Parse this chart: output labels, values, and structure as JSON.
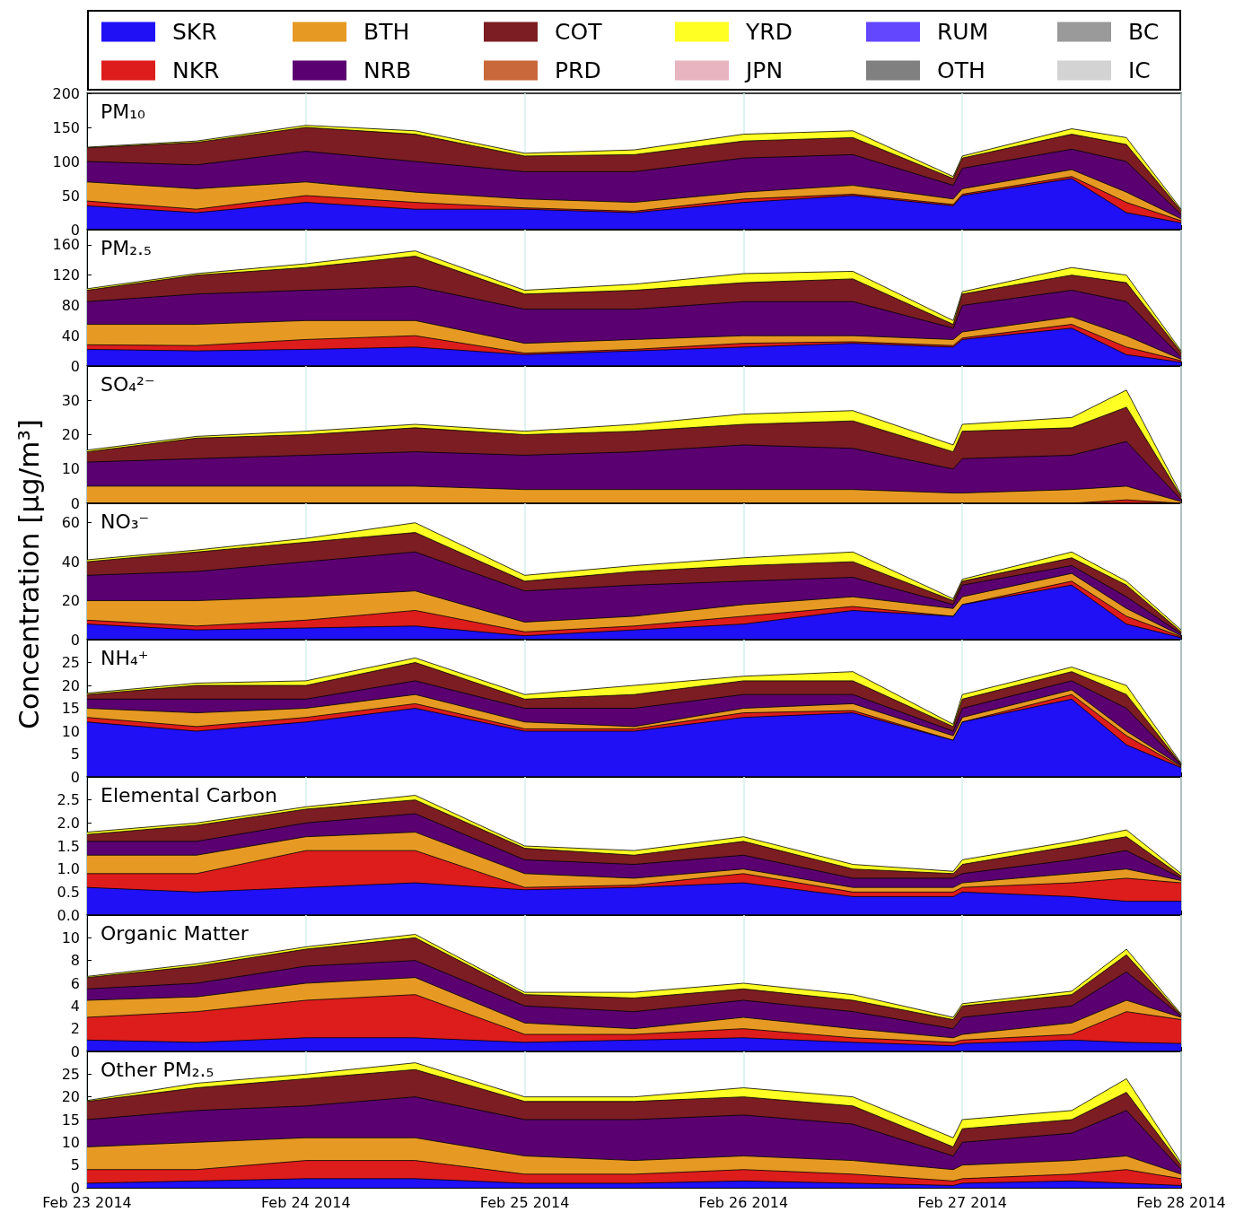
{
  "chart_data": [
    {
      "type": "area",
      "stacked": true,
      "title": "PM₁₀",
      "legend": "top",
      "marker": "none",
      "grid": "x",
      "tick_labels": "y",
      "x": [
        "2014-02-23T00:00",
        "2014-02-23T12:00",
        "2014-02-24T00:00",
        "2014-02-24T12:00",
        "2014-02-25T00:00",
        "2014-02-25T12:00",
        "2014-02-26T00:00",
        "2014-02-26T12:00",
        "2014-02-26T23:00",
        "2014-02-27T00:00",
        "2014-02-27T12:00",
        "2014-02-27T18:00",
        "2014-02-28T00:00"
      ],
      "xlim": [
        "2014-02-23",
        "2014-02-28"
      ],
      "xticks": [
        {
          "value": "2014-02-23",
          "label": null
        },
        {
          "value": "2014-02-24",
          "label": null
        },
        {
          "value": "2014-02-25",
          "label": null
        },
        {
          "value": "2014-02-26",
          "label": null
        },
        {
          "value": "2014-02-27",
          "label": null
        },
        {
          "value": "2014-02-28",
          "label": null
        }
      ],
      "ylim": [
        0,
        200
      ],
      "yticks": [
        0,
        50,
        100,
        150,
        200
      ],
      "series": [
        {
          "name": "SKR",
          "color": "#1f10f5",
          "values": [
            35,
            25,
            40,
            30,
            30,
            25,
            40,
            50,
            35,
            50,
            75,
            25,
            10
          ]
        },
        {
          "name": "NKR",
          "color": "#dd1c1c",
          "values": [
            7,
            5,
            10,
            10,
            2,
            2,
            5,
            2,
            2,
            2,
            3,
            15,
            3
          ]
        },
        {
          "name": "BTH",
          "color": "#e79a23",
          "values": [
            28,
            30,
            20,
            15,
            13,
            13,
            10,
            13,
            8,
            8,
            10,
            15,
            3
          ]
        },
        {
          "name": "NRB",
          "color": "#5a0070",
          "values": [
            30,
            35,
            45,
            45,
            40,
            45,
            50,
            45,
            20,
            30,
            30,
            45,
            6
          ]
        },
        {
          "name": "COT",
          "color": "#7b1d22",
          "values": [
            20,
            33,
            35,
            40,
            23,
            25,
            25,
            25,
            10,
            15,
            22,
            25,
            6
          ]
        },
        {
          "name": "PRD",
          "color": "#c9683a",
          "values": [
            null,
            null,
            null,
            null,
            null,
            null,
            null,
            null,
            null,
            null,
            null,
            null,
            null
          ]
        },
        {
          "name": "YRD",
          "color": "#ffff24",
          "values": [
            1,
            2,
            3,
            5,
            4,
            7,
            10,
            10,
            3,
            3,
            8,
            10,
            2
          ]
        },
        {
          "name": "JPN",
          "color": "#e8b4c0",
          "values": [
            null,
            null,
            null,
            null,
            null,
            null,
            null,
            null,
            null,
            null,
            null,
            null,
            null
          ]
        },
        {
          "name": "RUM",
          "color": "#6347ff",
          "values": [
            null,
            null,
            null,
            null,
            null,
            null,
            null,
            null,
            null,
            null,
            null,
            null,
            null
          ]
        },
        {
          "name": "OTH",
          "color": "#808080",
          "values": [
            null,
            null,
            null,
            null,
            null,
            null,
            null,
            null,
            null,
            null,
            null,
            null,
            null
          ]
        },
        {
          "name": "BC",
          "color": "#9a9a9a",
          "values": [
            null,
            null,
            null,
            null,
            null,
            null,
            null,
            null,
            null,
            null,
            null,
            null,
            null
          ]
        },
        {
          "name": "IC",
          "color": "#d3d3d3",
          "values": [
            null,
            null,
            null,
            null,
            null,
            null,
            null,
            null,
            null,
            null,
            null,
            null,
            null
          ]
        }
      ]
    },
    {
      "type": "area",
      "stacked": true,
      "title": "PM₂.₅",
      "marker": "none",
      "grid": "x",
      "tick_labels": "y",
      "x": [
        "2014-02-23T00:00",
        "2014-02-23T12:00",
        "2014-02-24T00:00",
        "2014-02-24T12:00",
        "2014-02-25T00:00",
        "2014-02-25T12:00",
        "2014-02-26T00:00",
        "2014-02-26T12:00",
        "2014-02-26T23:00",
        "2014-02-27T00:00",
        "2014-02-27T12:00",
        "2014-02-27T18:00",
        "2014-02-28T00:00"
      ],
      "xlim": [
        "2014-02-23",
        "2014-02-28"
      ],
      "xticks": [
        {
          "value": "2014-02-23",
          "label": null
        },
        {
          "value": "2014-02-24",
          "label": null
        },
        {
          "value": "2014-02-25",
          "label": null
        },
        {
          "value": "2014-02-26",
          "label": null
        },
        {
          "value": "2014-02-27",
          "label": null
        },
        {
          "value": "2014-02-28",
          "label": null
        }
      ],
      "ylim": [
        0,
        180
      ],
      "yticks": [
        0,
        40,
        80,
        120,
        160
      ],
      "series": [
        {
          "color": "#1f10f5",
          "values": [
            22,
            20,
            22,
            25,
            15,
            20,
            25,
            30,
            25,
            35,
            50,
            15,
            5
          ]
        },
        {
          "color": "#dd1c1c",
          "values": [
            6,
            7,
            13,
            15,
            2,
            2,
            5,
            2,
            2,
            2,
            5,
            10,
            2
          ]
        },
        {
          "color": "#e79a23",
          "values": [
            27,
            28,
            25,
            20,
            13,
            13,
            10,
            8,
            8,
            8,
            10,
            15,
            2
          ]
        },
        {
          "color": "#5a0070",
          "values": [
            30,
            40,
            40,
            45,
            45,
            40,
            45,
            45,
            15,
            35,
            35,
            45,
            3
          ]
        },
        {
          "color": "#7b1d22",
          "values": [
            15,
            25,
            30,
            40,
            20,
            25,
            25,
            30,
            5,
            15,
            20,
            25,
            6
          ]
        },
        {
          "color": "#ffff24",
          "values": [
            2,
            2,
            5,
            7,
            5,
            8,
            12,
            10,
            5,
            3,
            10,
            10,
            2
          ]
        }
      ]
    },
    {
      "type": "area",
      "stacked": true,
      "title": "SO₄²⁻",
      "marker": "none",
      "grid": "x",
      "tick_labels": "y",
      "x": [
        "2014-02-23T00:00",
        "2014-02-23T12:00",
        "2014-02-24T00:00",
        "2014-02-24T12:00",
        "2014-02-25T00:00",
        "2014-02-25T12:00",
        "2014-02-26T00:00",
        "2014-02-26T12:00",
        "2014-02-26T23:00",
        "2014-02-27T00:00",
        "2014-02-27T12:00",
        "2014-02-27T18:00",
        "2014-02-28T00:00"
      ],
      "xlim": [
        "2014-02-23",
        "2014-02-28"
      ],
      "xticks": [
        {
          "value": "2014-02-23",
          "label": null
        },
        {
          "value": "2014-02-24",
          "label": null
        },
        {
          "value": "2014-02-25",
          "label": null
        },
        {
          "value": "2014-02-26",
          "label": null
        },
        {
          "value": "2014-02-27",
          "label": null
        },
        {
          "value": "2014-02-28",
          "label": null
        }
      ],
      "ylim": [
        0,
        40
      ],
      "yticks": [
        0,
        10,
        20,
        30
      ],
      "series": [
        {
          "color": "#1f10f5",
          "values": [
            null,
            null,
            null,
            null,
            null,
            null,
            null,
            null,
            null,
            null,
            null,
            null,
            null
          ]
        },
        {
          "color": "#dd1c1c",
          "values": [
            0,
            0,
            0,
            0,
            0,
            0,
            0,
            0,
            0,
            0,
            0,
            1,
            0
          ]
        },
        {
          "color": "#e79a23",
          "values": [
            5,
            5,
            5,
            5,
            4,
            4,
            4,
            4,
            3,
            3,
            4,
            4,
            0.5
          ]
        },
        {
          "color": "#5a0070",
          "values": [
            7,
            8,
            9,
            10,
            10,
            11,
            13,
            12,
            7,
            10,
            10,
            13,
            0.5
          ]
        },
        {
          "color": "#7b1d22",
          "values": [
            3,
            6,
            6,
            7,
            6,
            6,
            6,
            8,
            5,
            8,
            8,
            10,
            1
          ]
        },
        {
          "color": "#ffff24",
          "values": [
            0.5,
            0.5,
            1,
            1,
            1,
            2,
            3,
            3,
            2,
            2,
            3,
            5,
            0.5
          ]
        }
      ]
    },
    {
      "type": "area",
      "stacked": true,
      "title": "NO₃⁻",
      "marker": "none",
      "grid": "x",
      "tick_labels": "y",
      "ylabel": "Concentration [μg/m³]",
      "x": [
        "2014-02-23T00:00",
        "2014-02-23T12:00",
        "2014-02-24T00:00",
        "2014-02-24T12:00",
        "2014-02-25T00:00",
        "2014-02-25T12:00",
        "2014-02-26T00:00",
        "2014-02-26T12:00",
        "2014-02-26T23:00",
        "2014-02-27T00:00",
        "2014-02-27T12:00",
        "2014-02-27T18:00",
        "2014-02-28T00:00"
      ],
      "xlim": [
        "2014-02-23",
        "2014-02-28"
      ],
      "xticks": [
        {
          "value": "2014-02-23",
          "label": null
        },
        {
          "value": "2014-02-24",
          "label": null
        },
        {
          "value": "2014-02-25",
          "label": null
        },
        {
          "value": "2014-02-26",
          "label": null
        },
        {
          "value": "2014-02-27",
          "label": null
        },
        {
          "value": "2014-02-28",
          "label": null
        }
      ],
      "ylim": [
        0,
        70
      ],
      "yticks": [
        0,
        20,
        40,
        60
      ],
      "series": [
        {
          "color": "#1f10f5",
          "values": [
            8,
            5,
            6,
            7,
            2,
            5,
            8,
            15,
            12,
            18,
            28,
            8,
            1
          ]
        },
        {
          "color": "#dd1c1c",
          "values": [
            2,
            2,
            4,
            8,
            2,
            2,
            4,
            2,
            0,
            0,
            2,
            4,
            0.5
          ]
        },
        {
          "color": "#e79a23",
          "values": [
            10,
            13,
            12,
            10,
            5,
            5,
            6,
            5,
            4,
            4,
            4,
            4,
            0.5
          ]
        },
        {
          "color": "#5a0070",
          "values": [
            13,
            15,
            18,
            20,
            16,
            16,
            12,
            10,
            2,
            6,
            4,
            6,
            1
          ]
        },
        {
          "color": "#7b1d22",
          "values": [
            7,
            10,
            10,
            10,
            5,
            7,
            8,
            8,
            2,
            2,
            4,
            6,
            1
          ]
        },
        {
          "color": "#ffff24",
          "values": [
            1,
            1,
            2,
            5,
            3,
            3,
            4,
            5,
            1,
            1,
            3,
            2,
            1
          ]
        }
      ]
    },
    {
      "type": "area",
      "stacked": true,
      "title": "NH₄⁺",
      "marker": "none",
      "grid": "x",
      "tick_labels": "y",
      "x": [
        "2014-02-23T00:00",
        "2014-02-23T12:00",
        "2014-02-24T00:00",
        "2014-02-24T12:00",
        "2014-02-25T00:00",
        "2014-02-25T12:00",
        "2014-02-26T00:00",
        "2014-02-26T12:00",
        "2014-02-26T23:00",
        "2014-02-27T00:00",
        "2014-02-27T12:00",
        "2014-02-27T18:00",
        "2014-02-28T00:00"
      ],
      "xlim": [
        "2014-02-23",
        "2014-02-28"
      ],
      "xticks": [
        {
          "value": "2014-02-23",
          "label": null
        },
        {
          "value": "2014-02-24",
          "label": null
        },
        {
          "value": "2014-02-25",
          "label": null
        },
        {
          "value": "2014-02-26",
          "label": null
        },
        {
          "value": "2014-02-27",
          "label": null
        },
        {
          "value": "2014-02-28",
          "label": null
        }
      ],
      "ylim": [
        0,
        30
      ],
      "yticks": [
        0,
        5,
        10,
        15,
        20,
        25
      ],
      "series": [
        {
          "color": "#1f10f5",
          "values": [
            12,
            10,
            12,
            15,
            10,
            10,
            13,
            14,
            8,
            12,
            17,
            7,
            2
          ]
        },
        {
          "color": "#dd1c1c",
          "values": [
            1,
            1,
            1,
            1,
            0.5,
            0.5,
            1,
            0.5,
            0,
            0,
            1,
            2,
            0.2
          ]
        },
        {
          "color": "#e79a23",
          "values": [
            2,
            3,
            2,
            2,
            1.5,
            0.5,
            1,
            1.5,
            1,
            1,
            1,
            1,
            0.2
          ]
        },
        {
          "color": "#5a0070",
          "values": [
            2,
            3,
            2,
            3,
            3,
            4,
            3,
            2,
            1,
            2,
            2,
            5,
            0.2
          ]
        },
        {
          "color": "#7b1d22",
          "values": [
            1,
            3,
            3,
            4,
            2,
            3,
            3,
            3,
            1,
            2,
            2,
            3,
            0.2
          ]
        },
        {
          "color": "#ffff24",
          "values": [
            0.3,
            0.5,
            1,
            1,
            1,
            2,
            1,
            2,
            0.5,
            1,
            1,
            2,
            0.2
          ]
        }
      ]
    },
    {
      "type": "area",
      "stacked": true,
      "title": "Elemental Carbon",
      "marker": "none",
      "grid": "x",
      "tick_labels": "y",
      "x": [
        "2014-02-23T00:00",
        "2014-02-23T12:00",
        "2014-02-24T00:00",
        "2014-02-24T12:00",
        "2014-02-25T00:00",
        "2014-02-25T12:00",
        "2014-02-26T00:00",
        "2014-02-26T12:00",
        "2014-02-26T23:00",
        "2014-02-27T00:00",
        "2014-02-27T12:00",
        "2014-02-27T18:00",
        "2014-02-28T00:00"
      ],
      "xlim": [
        "2014-02-23",
        "2014-02-28"
      ],
      "xticks": [
        {
          "value": "2014-02-23",
          "label": null
        },
        {
          "value": "2014-02-24",
          "label": null
        },
        {
          "value": "2014-02-25",
          "label": null
        },
        {
          "value": "2014-02-26",
          "label": null
        },
        {
          "value": "2014-02-27",
          "label": null
        },
        {
          "value": "2014-02-28",
          "label": null
        }
      ],
      "ylim": [
        0,
        3
      ],
      "yticks": [
        {
          "value": 0,
          "label": "0.0"
        },
        {
          "value": 0.5,
          "label": "0.5"
        },
        {
          "value": 1,
          "label": "1.0"
        },
        {
          "value": 1.5,
          "label": "1.5"
        },
        {
          "value": 2,
          "label": "2.0"
        },
        {
          "value": 2.5,
          "label": "2.5"
        }
      ],
      "series": [
        {
          "color": "#1f10f5",
          "values": [
            0.6,
            0.5,
            0.6,
            0.7,
            0.55,
            0.6,
            0.7,
            0.4,
            0.4,
            0.5,
            0.4,
            0.3,
            0.3
          ]
        },
        {
          "color": "#dd1c1c",
          "values": [
            0.3,
            0.4,
            0.8,
            0.7,
            0.05,
            0.05,
            0.2,
            0.1,
            0.1,
            0.1,
            0.3,
            0.5,
            0.4
          ]
        },
        {
          "color": "#e79a23",
          "values": [
            0.4,
            0.4,
            0.3,
            0.4,
            0.3,
            0.15,
            0.1,
            0.1,
            0.1,
            0.1,
            0.2,
            0.2,
            0.05
          ]
        },
        {
          "color": "#5a0070",
          "values": [
            0.3,
            0.3,
            0.3,
            0.4,
            0.3,
            0.3,
            0.3,
            0.2,
            0.2,
            0.2,
            0.3,
            0.4,
            0.05
          ]
        },
        {
          "color": "#7b1d22",
          "values": [
            0.15,
            0.35,
            0.3,
            0.3,
            0.25,
            0.2,
            0.3,
            0.2,
            0.1,
            0.2,
            0.3,
            0.3,
            0.05
          ]
        },
        {
          "color": "#ffff24",
          "values": [
            0.05,
            0.05,
            0.05,
            0.1,
            0.05,
            0.1,
            0.1,
            0.1,
            0.05,
            0.1,
            0.1,
            0.15,
            0.05
          ]
        }
      ]
    },
    {
      "type": "area",
      "stacked": true,
      "title": "Organic Matter",
      "marker": "none",
      "grid": "x",
      "tick_labels": "y",
      "x": [
        "2014-02-23T00:00",
        "2014-02-23T12:00",
        "2014-02-24T00:00",
        "2014-02-24T12:00",
        "2014-02-25T00:00",
        "2014-02-25T12:00",
        "2014-02-26T00:00",
        "2014-02-26T12:00",
        "2014-02-26T23:00",
        "2014-02-27T00:00",
        "2014-02-27T12:00",
        "2014-02-27T18:00",
        "2014-02-28T00:00"
      ],
      "xlim": [
        "2014-02-23",
        "2014-02-28"
      ],
      "xticks": [
        {
          "value": "2014-02-23",
          "label": null
        },
        {
          "value": "2014-02-24",
          "label": null
        },
        {
          "value": "2014-02-25",
          "label": null
        },
        {
          "value": "2014-02-26",
          "label": null
        },
        {
          "value": "2014-02-27",
          "label": null
        },
        {
          "value": "2014-02-28",
          "label": null
        }
      ],
      "ylim": [
        0,
        12
      ],
      "yticks": [
        0,
        2,
        4,
        6,
        8,
        10
      ],
      "series": [
        {
          "color": "#1f10f5",
          "values": [
            1,
            0.8,
            1.2,
            1.2,
            0.8,
            1,
            1.2,
            0.8,
            0.5,
            0.7,
            1,
            0.8,
            0.7
          ]
        },
        {
          "color": "#dd1c1c",
          "values": [
            2,
            2.7,
            3.3,
            3.8,
            0.7,
            0.5,
            0.8,
            0.4,
            0.3,
            0.3,
            0.5,
            2.7,
            2.1
          ]
        },
        {
          "color": "#e79a23",
          "values": [
            1.5,
            1.3,
            1.5,
            1.5,
            1,
            0.5,
            1,
            0.8,
            0.4,
            0.5,
            1,
            1,
            0.2
          ]
        },
        {
          "color": "#5a0070",
          "values": [
            1,
            1.2,
            1.5,
            1.5,
            1.5,
            1.5,
            1.5,
            1.5,
            0.8,
            1.5,
            1.5,
            2.5,
            0.1
          ]
        },
        {
          "color": "#7b1d22",
          "values": [
            1,
            1.5,
            1.5,
            2,
            1,
            1.2,
            1,
            1,
            0.8,
            1,
            1,
            1.5,
            0.1
          ]
        },
        {
          "color": "#ffff24",
          "values": [
            0.1,
            0.2,
            0.2,
            0.3,
            0.2,
            0.5,
            0.5,
            0.5,
            0.2,
            0.2,
            0.3,
            0.5,
            0.1
          ]
        }
      ]
    },
    {
      "type": "area",
      "stacked": true,
      "title": "Other PM₂.₅",
      "marker": "none",
      "grid": "x",
      "x": [
        "2014-02-23T00:00",
        "2014-02-23T12:00",
        "2014-02-24T00:00",
        "2014-02-24T12:00",
        "2014-02-25T00:00",
        "2014-02-25T12:00",
        "2014-02-26T00:00",
        "2014-02-26T12:00",
        "2014-02-26T23:00",
        "2014-02-27T00:00",
        "2014-02-27T12:00",
        "2014-02-27T18:00",
        "2014-02-28T00:00"
      ],
      "xlim": [
        "2014-02-23",
        "2014-02-28"
      ],
      "xticks": [
        {
          "value": "2014-02-23",
          "label": "Feb 23 2014"
        },
        {
          "value": "2014-02-24",
          "label": "Feb 24 2014"
        },
        {
          "value": "2014-02-25",
          "label": "Feb 25 2014"
        },
        {
          "value": "2014-02-26",
          "label": "Feb 26 2014"
        },
        {
          "value": "2014-02-27",
          "label": "Feb 27 2014"
        },
        {
          "value": "2014-02-28",
          "label": "Feb 28 2014"
        }
      ],
      "ylim": [
        0,
        30
      ],
      "yticks": [
        0,
        5,
        10,
        15,
        20,
        25
      ],
      "series": [
        {
          "color": "#1f10f5",
          "values": [
            1,
            1.5,
            2,
            2,
            1,
            1,
            1.5,
            1,
            0.5,
            1,
            1.5,
            1,
            0.5
          ]
        },
        {
          "color": "#dd1c1c",
          "values": [
            3,
            2.5,
            4,
            4,
            2,
            2,
            2.5,
            2,
            1,
            1,
            1.5,
            3,
            1.5
          ]
        },
        {
          "color": "#e79a23",
          "values": [
            5,
            6,
            5,
            5,
            4,
            3,
            3,
            3,
            2.5,
            3,
            3,
            3,
            1
          ]
        },
        {
          "color": "#5a0070",
          "values": [
            6,
            7,
            7,
            9,
            8,
            9,
            9,
            8,
            3,
            5,
            6,
            10,
            1
          ]
        },
        {
          "color": "#7b1d22",
          "values": [
            4,
            5,
            6,
            6,
            4,
            4,
            4,
            4,
            2,
            3,
            3,
            4,
            1
          ]
        },
        {
          "color": "#ffff24",
          "values": [
            0.2,
            1,
            1,
            1.5,
            1,
            1,
            2,
            2,
            2,
            2,
            2,
            3,
            0.5
          ]
        }
      ]
    }
  ]
}
